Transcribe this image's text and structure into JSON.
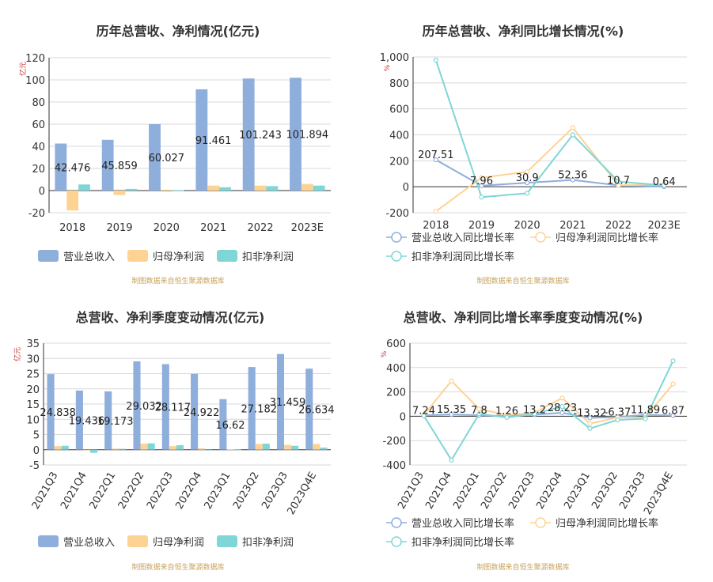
{
  "colors": {
    "revenue": "#8eaedc",
    "net_profit": "#fdd394",
    "deducted_profit": "#7fd6d6",
    "axis_unit": "#cc3333",
    "source": "#c8a25a"
  },
  "source_note": "制图数据来自恒生聚源数据库",
  "chart_data": [
    {
      "type": "bar",
      "title": "历年总营收、净利情况(亿元)",
      "ylabel": "亿元",
      "ylim": [
        -20,
        120
      ],
      "yticks": [
        -20,
        0,
        20,
        40,
        60,
        80,
        100,
        120
      ],
      "categories": [
        "2018",
        "2019",
        "2020",
        "2021",
        "2022",
        "2023E"
      ],
      "series": [
        {
          "name": "营业总收入",
          "values": [
            42.476,
            45.859,
            60.027,
            91.461,
            101.243,
            101.894
          ]
        },
        {
          "name": "归母净利润",
          "values": [
            -18.0,
            -4.0,
            0.8,
            4.5,
            4.5,
            6.0
          ]
        },
        {
          "name": "扣非净利润",
          "values": [
            5.5,
            1.5,
            0.5,
            3.0,
            4.0,
            4.5
          ]
        }
      ],
      "data_labels": [
        "42.476",
        "45.859",
        "60.027",
        "91.461",
        "101.243",
        "101.894"
      ],
      "legend_position": "bottom-left",
      "grid": true
    },
    {
      "type": "line",
      "title": "历年总营收、净利同比增长情况(%)",
      "ylabel": "%",
      "ylim": [
        -200,
        1000
      ],
      "yticks": [
        "-200",
        "0",
        "200",
        "400",
        "600",
        "800",
        "1,000"
      ],
      "categories": [
        "2018",
        "2019",
        "2020",
        "2021",
        "2022",
        "2023E"
      ],
      "series": [
        {
          "name": "营业总收入同比增长率",
          "values": [
            207.51,
            7.96,
            30.9,
            52.36,
            10.7,
            0.64
          ]
        },
        {
          "name": "归母净利润同比增长率",
          "values": [
            -190,
            70,
            115,
            455,
            10,
            20
          ]
        },
        {
          "name": "扣非净利润同比增长率",
          "values": [
            975,
            -80,
            -50,
            400,
            40,
            10
          ]
        }
      ],
      "data_labels": [
        "207.51",
        "7.96",
        "30.9",
        "52.36",
        "10.7",
        "0.64"
      ],
      "legend_position": "bottom",
      "grid": true
    },
    {
      "type": "bar",
      "title": "总营收、净利季度变动情况(亿元)",
      "ylabel": "亿元",
      "ylim": [
        -5,
        35
      ],
      "yticks": [
        -5,
        0,
        5,
        10,
        15,
        20,
        25,
        30,
        35
      ],
      "categories": [
        "2021Q3",
        "2021Q4",
        "2022Q1",
        "2022Q2",
        "2022Q3",
        "2022Q4",
        "2023Q1",
        "2023Q2",
        "2023Q3",
        "2023Q4E"
      ],
      "series": [
        {
          "name": "营业总收入",
          "values": [
            24.838,
            19.436,
            19.173,
            29.032,
            28.117,
            24.922,
            16.62,
            27.182,
            31.459,
            26.634
          ]
        },
        {
          "name": "归母净利润",
          "values": [
            1.2,
            -0.3,
            0.4,
            2.0,
            1.2,
            0.5,
            0.2,
            1.9,
            1.6,
            1.9
          ]
        },
        {
          "name": "扣非净利润",
          "values": [
            1.3,
            -1.0,
            0.3,
            2.1,
            1.5,
            -0.2,
            0.1,
            2.0,
            1.3,
            0.7
          ]
        }
      ],
      "data_labels": [
        "24.838",
        "19.436",
        "19.173",
        "29.032",
        "28.117",
        "24.922",
        "16.62",
        "27.182",
        "31.459",
        "26.634"
      ],
      "legend_position": "bottom-left",
      "grid": true
    },
    {
      "type": "line",
      "title": "总营收、净利同比增长率季度变动情况(%)",
      "ylabel": "%",
      "ylim": [
        -400,
        600
      ],
      "yticks": [
        "-400",
        "-200",
        "0",
        "200",
        "400",
        "600"
      ],
      "categories": [
        "2021Q3",
        "2021Q4",
        "2022Q1",
        "2022Q2",
        "2022Q3",
        "2022Q4",
        "2023Q1",
        "2023Q2",
        "2023Q3",
        "2023Q4E"
      ],
      "series": [
        {
          "name": "营业总收入同比增长率",
          "values": [
            7.24,
            15.35,
            7.8,
            1.26,
            13.2,
            28.23,
            -13.32,
            -6.37,
            11.89,
            6.87
          ]
        },
        {
          "name": "归母净利润同比增长率",
          "values": [
            10,
            290,
            60,
            10,
            30,
            150,
            -60,
            -10,
            -10,
            265
          ]
        },
        {
          "name": "扣非净利润同比增长率",
          "values": [
            5,
            -360,
            20,
            -10,
            20,
            80,
            -100,
            -30,
            -20,
            455
          ]
        }
      ],
      "data_labels": [
        "7.24",
        "15.35",
        "7.8",
        "1.26",
        "13.2",
        "28.23",
        "-13.32",
        "-6.37",
        "11.89",
        "6.87"
      ],
      "legend_position": "bottom",
      "grid": true
    }
  ]
}
